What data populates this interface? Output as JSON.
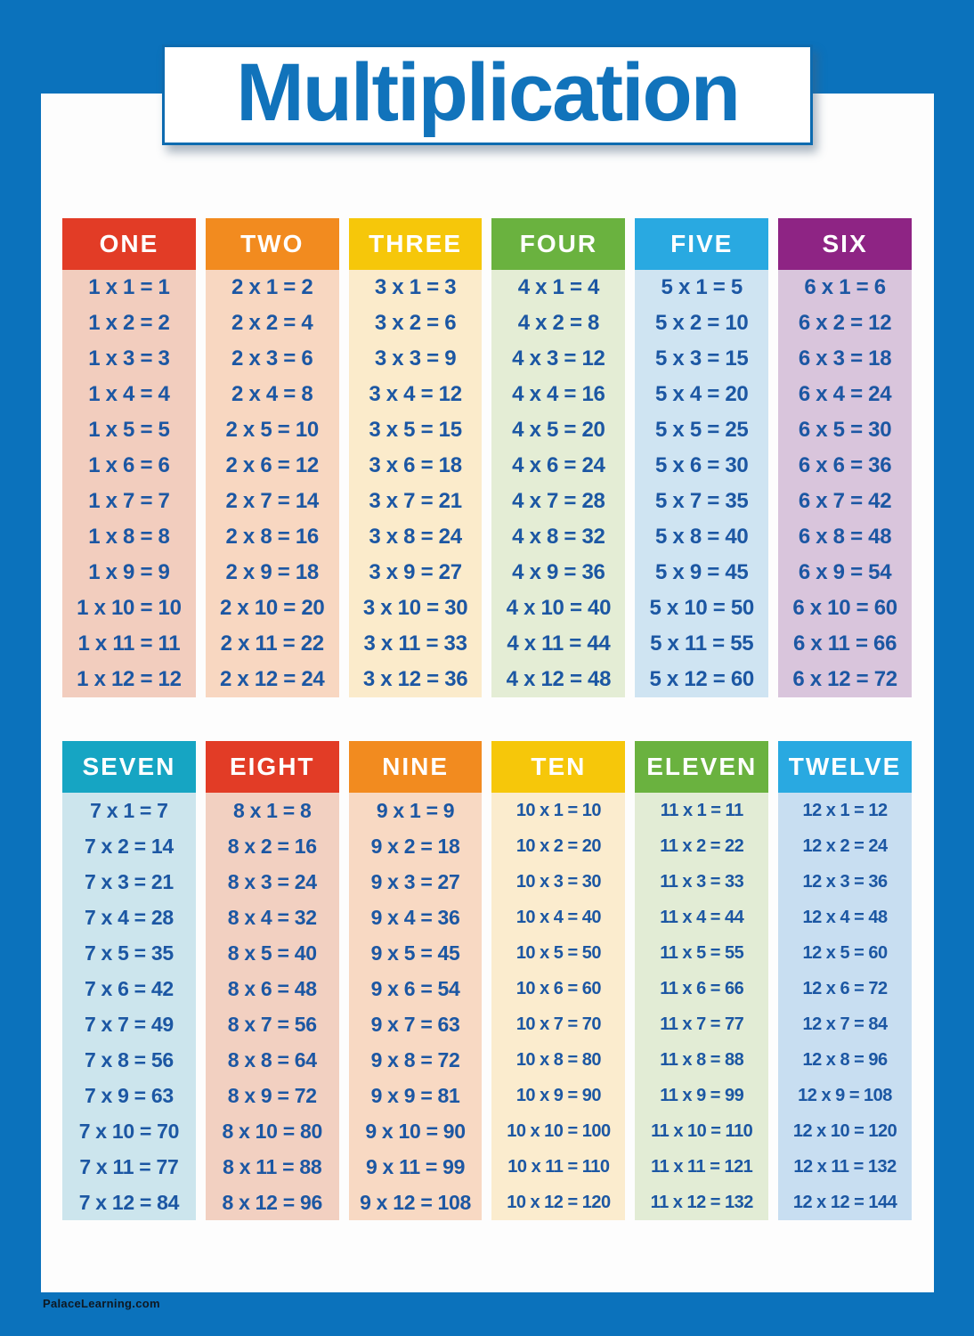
{
  "title": "Multiplication",
  "footer": "PalaceLearning.com",
  "colors": {
    "frame_blue": "#0b72bc",
    "title_blue": "#1173bb",
    "fact_text_blue": "#1c57a3",
    "content_white": "#fdfdfd",
    "header_text_white": "#ffffff",
    "footer_text": "#0e1822"
  },
  "tables": [
    {
      "label": "ONE",
      "factor": 1,
      "header_color": "#e23c26",
      "body_color": "#f2cdbe",
      "facts": [
        "1 x 1 = 1",
        "1 x 2 = 2",
        "1 x 3 = 3",
        "1 x 4 = 4",
        "1 x 5 = 5",
        "1 x 6 = 6",
        "1 x 7 = 7",
        "1 x 8 = 8",
        "1 x 9 = 9",
        "1 x 10 = 10",
        "1 x 11 = 11",
        "1 x 12 = 12"
      ]
    },
    {
      "label": "TWO",
      "factor": 2,
      "header_color": "#f28b1f",
      "body_color": "#f8d7c1",
      "facts": [
        "2 x 1 = 2",
        "2 x 2 = 4",
        "2 x 3 = 6",
        "2 x 4 = 8",
        "2 x 5 = 10",
        "2 x 6 = 12",
        "2 x 7 = 14",
        "2 x 8 = 16",
        "2 x 9 = 18",
        "2 x 10 = 20",
        "2 x 11 = 22",
        "2 x 12 = 24"
      ]
    },
    {
      "label": "THREE",
      "factor": 3,
      "header_color": "#f6c70a",
      "body_color": "#fbebcb",
      "facts": [
        "3 x 1 = 3",
        "3 x 2 = 6",
        "3 x 3 = 9",
        "3 x 4 = 12",
        "3 x 5 = 15",
        "3 x 6 = 18",
        "3 x 7 = 21",
        "3 x 8 = 24",
        "3 x 9 = 27",
        "3 x 10 = 30",
        "3 x 11 = 33",
        "3 x 12 = 36"
      ]
    },
    {
      "label": "FOUR",
      "factor": 4,
      "header_color": "#6ab23f",
      "body_color": "#e4edd5",
      "facts": [
        "4 x 1 = 4",
        "4 x 2 = 8",
        "4 x 3 = 12",
        "4 x 4 = 16",
        "4 x 5 = 20",
        "4 x 6 = 24",
        "4 x 7 = 28",
        "4 x 8 = 32",
        "4 x 9 = 36",
        "4 x 10 = 40",
        "4 x 11 = 44",
        "4 x 12 = 48"
      ]
    },
    {
      "label": "FIVE",
      "factor": 5,
      "header_color": "#29a9e1",
      "body_color": "#cfe4f2",
      "facts": [
        "5 x 1 = 5",
        "5 x 2 = 10",
        "5 x 3 = 15",
        "5 x 4 = 20",
        "5 x 5 = 25",
        "5 x 6 = 30",
        "5 x 7 = 35",
        "5 x 8 = 40",
        "5 x 9 = 45",
        "5 x 10 = 50",
        "5 x 11 = 55",
        "5 x 12 = 60"
      ]
    },
    {
      "label": "SIX",
      "factor": 6,
      "header_color": "#8e2484",
      "body_color": "#d9c5dc",
      "facts": [
        "6 x 1 = 6",
        "6 x 2 = 12",
        "6 x 3 = 18",
        "6 x 4 = 24",
        "6 x 5 = 30",
        "6 x 6 = 36",
        "6 x 7 = 42",
        "6 x 8 = 48",
        "6 x 9 = 54",
        "6 x 10 = 60",
        "6 x 11 = 66",
        "6 x 12 = 72"
      ]
    },
    {
      "label": "SEVEN",
      "factor": 7,
      "header_color": "#16a5c3",
      "body_color": "#cce5ed",
      "facts": [
        "7 x 1 = 7",
        "7 x 2 = 14",
        "7 x 3 = 21",
        "7 x 4 = 28",
        "7 x 5 = 35",
        "7 x 6 = 42",
        "7 x 7 = 49",
        "7 x 8 = 56",
        "7 x 9 = 63",
        "7 x 10 = 70",
        "7 x 11 = 77",
        "7 x 12 = 84"
      ]
    },
    {
      "label": "EIGHT",
      "factor": 8,
      "header_color": "#e23c26",
      "body_color": "#f2d0c1",
      "facts": [
        "8 x 1 = 8",
        "8 x 2 = 16",
        "8 x 3 = 24",
        "8 x 4 = 32",
        "8 x 5 = 40",
        "8 x 6 = 48",
        "8 x 7 = 56",
        "8 x 8 = 64",
        "8 x 9 = 72",
        "8 x 10 = 80",
        "8 x 11 = 88",
        "8 x 12 = 96"
      ]
    },
    {
      "label": "NINE",
      "factor": 9,
      "header_color": "#f28b1f",
      "body_color": "#f8d9c3",
      "facts": [
        "9 x 1 = 9",
        "9 x 2 = 18",
        "9 x 3 = 27",
        "9 x 4 = 36",
        "9 x 5 = 45",
        "9 x 6 = 54",
        "9 x 7 = 63",
        "9 x 8 = 72",
        "9 x 9 = 81",
        "9 x 10 = 90",
        "9 x 11 = 99",
        "9 x 12 = 108"
      ]
    },
    {
      "label": "TEN",
      "factor": 10,
      "header_color": "#f6c70a",
      "body_color": "#fbecce",
      "facts": [
        "10 x 1 = 10",
        "10 x 2 = 20",
        "10 x 3 = 30",
        "10 x 4 = 40",
        "10 x 5 = 50",
        "10 x 6 = 60",
        "10 x 7 = 70",
        "10 x 8 = 80",
        "10 x 9 = 90",
        "10 x 10 = 100",
        "10 x 11 = 110",
        "10 x 12 = 120"
      ]
    },
    {
      "label": "ELEVEN",
      "factor": 11,
      "header_color": "#6ab23f",
      "body_color": "#e2ecd5",
      "facts": [
        "11 x 1 = 11",
        "11 x 2 = 22",
        "11 x 3 = 33",
        "11 x 4 = 44",
        "11 x 5 = 55",
        "11 x 6 = 66",
        "11 x 7 = 77",
        "11 x 8 = 88",
        "11 x 9 = 99",
        "11 x 10 = 110",
        "11 x 11 = 121",
        "11 x 12 = 132"
      ]
    },
    {
      "label": "TWELVE",
      "factor": 12,
      "header_color": "#29a9e1",
      "body_color": "#c8def1",
      "facts": [
        "12 x 1 = 12",
        "12 x 2 = 24",
        "12 x 3 = 36",
        "12 x 4 = 48",
        "12 x 5 = 60",
        "12 x 6 = 72",
        "12 x 7 = 84",
        "12 x 8 = 96",
        "12 x 9 = 108",
        "12 x 10 = 120",
        "12 x 11 = 132",
        "12 x 12 = 144"
      ]
    }
  ]
}
